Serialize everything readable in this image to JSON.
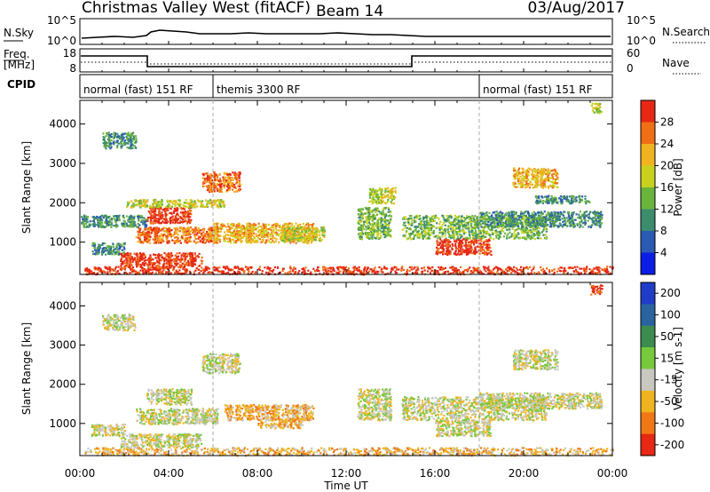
{
  "header": {
    "title": "Christmas Valley West (fitACF)",
    "beam": "Beam 14",
    "date": "03/Aug/2017"
  },
  "top_panels": {
    "nsky_label": "N.Sky",
    "nsky_ticks": [
      "10^5",
      "10^0"
    ],
    "nsearch_label": "N.Search",
    "nsearch_ticks": [
      "10^5",
      "10^0"
    ],
    "freq_label_1": "Freq.",
    "freq_label_2": "[MHz]",
    "freq_ticks": [
      "18",
      "8"
    ],
    "nave_label": "Nave",
    "nave_ticks": [
      "60",
      "0"
    ],
    "cpid_label": "CPID",
    "cpid_segments": [
      {
        "label": "normal (fast) 151 RF",
        "start_h": 0,
        "end_h": 6
      },
      {
        "label": "themis 3300 RF",
        "start_h": 6,
        "end_h": 18
      },
      {
        "label": "normal (fast) 151 RF",
        "start_h": 18,
        "end_h": 24
      }
    ]
  },
  "x_axis": {
    "label": "Time UT",
    "ticks": [
      "00:00",
      "04:00",
      "08:00",
      "12:00",
      "16:00",
      "20:00",
      "00:00"
    ]
  },
  "chart_data": [
    {
      "type": "heatmap",
      "name": "power",
      "ylabel": "Slant Range [km]",
      "yticks": [
        "1000",
        "2000",
        "3000",
        "4000"
      ],
      "xlim_hours": [
        0,
        24
      ],
      "ylim_km": [
        180,
        4600
      ],
      "colorbar_label": "Power [dB]",
      "colorbar_ticks": [
        "4",
        "8",
        "12",
        "16",
        "20",
        "24",
        "28"
      ],
      "colors": [
        "#0a1ee6",
        "#2a5ab4",
        "#3c8c6e",
        "#6ab43c",
        "#c8d21e",
        "#f0b41e",
        "#f06e14",
        "#e62814"
      ],
      "regions": [
        {
          "t0": 0.2,
          "t1": 24,
          "r0": 200,
          "r1": 400,
          "level": 7
        },
        {
          "t0": 0.5,
          "t1": 2.0,
          "r0": 700,
          "r1": 1000,
          "level": 2
        },
        {
          "t0": 1.0,
          "t1": 2.5,
          "r0": 3400,
          "r1": 3800,
          "level": 2
        },
        {
          "t0": 1.8,
          "t1": 5.5,
          "r0": 400,
          "r1": 750,
          "level": 7
        },
        {
          "t0": 2.5,
          "t1": 6.2,
          "r0": 1000,
          "r1": 1400,
          "level": 6
        },
        {
          "t0": 3.0,
          "t1": 5.0,
          "r0": 1500,
          "r1": 1900,
          "level": 7
        },
        {
          "t0": 2.0,
          "t1": 6.5,
          "r0": 1900,
          "r1": 2100,
          "level": 4
        },
        {
          "t0": 5.5,
          "t1": 7.2,
          "r0": 2300,
          "r1": 2800,
          "level": 6
        },
        {
          "t0": 6.0,
          "t1": 10.5,
          "r0": 1000,
          "r1": 1500,
          "level": 5
        },
        {
          "t0": 0.0,
          "t1": 3.0,
          "r0": 1400,
          "r1": 1700,
          "level": 2
        },
        {
          "t0": 9.0,
          "t1": 11.0,
          "r0": 1050,
          "r1": 1400,
          "level": 4
        },
        {
          "t0": 12.5,
          "t1": 14.0,
          "r0": 1100,
          "r1": 1900,
          "level": 3
        },
        {
          "t0": 13.0,
          "t1": 14.2,
          "r0": 2000,
          "r1": 2400,
          "level": 4
        },
        {
          "t0": 14.5,
          "t1": 21.0,
          "r0": 1100,
          "r1": 1700,
          "level": 3
        },
        {
          "t0": 16.0,
          "t1": 18.5,
          "r0": 700,
          "r1": 1100,
          "level": 7
        },
        {
          "t0": 18.0,
          "t1": 23.5,
          "r0": 1400,
          "r1": 1800,
          "level": 2
        },
        {
          "t0": 19.5,
          "t1": 21.5,
          "r0": 2400,
          "r1": 2900,
          "level": 5
        },
        {
          "t0": 20.5,
          "t1": 23.0,
          "r0": 2000,
          "r1": 2200,
          "level": 2
        },
        {
          "t0": 23.0,
          "t1": 23.5,
          "r0": 4300,
          "r1": 4550,
          "level": 4
        }
      ]
    },
    {
      "type": "heatmap",
      "name": "velocity",
      "ylabel": "Slant Range [km]",
      "yticks": [
        "1000",
        "2000",
        "3000",
        "4000"
      ],
      "xlim_hours": [
        0,
        24
      ],
      "ylim_km": [
        180,
        4600
      ],
      "colorbar_label": "Velocity [m s-1]",
      "colorbar_ticks": [
        "200",
        "100",
        "50",
        "15",
        "-15",
        "-50",
        "-100",
        "-200"
      ],
      "colors": [
        "#1e3cc8",
        "#2a64a0",
        "#3c8c50",
        "#78c83c",
        "#c8c8c0",
        "#f0b41e",
        "#f07814",
        "#e62814"
      ],
      "regions": [
        {
          "t0": 0.2,
          "t1": 24,
          "r0": 200,
          "r1": 400,
          "level": 5
        },
        {
          "t0": 0.5,
          "t1": 2.0,
          "r0": 700,
          "r1": 1000,
          "level": 4
        },
        {
          "t0": 1.0,
          "t1": 2.5,
          "r0": 3400,
          "r1": 3800,
          "level": 4
        },
        {
          "t0": 1.8,
          "t1": 5.5,
          "r0": 400,
          "r1": 750,
          "level": 4
        },
        {
          "t0": 2.5,
          "t1": 6.2,
          "r0": 1000,
          "r1": 1400,
          "level": 4
        },
        {
          "t0": 3.0,
          "t1": 5.0,
          "r0": 1500,
          "r1": 1900,
          "level": 4
        },
        {
          "t0": 5.5,
          "t1": 7.2,
          "r0": 2300,
          "r1": 2800,
          "level": 4
        },
        {
          "t0": 6.5,
          "t1": 10.5,
          "r0": 1100,
          "r1": 1500,
          "level": 5
        },
        {
          "t0": 8.0,
          "t1": 10.0,
          "r0": 900,
          "r1": 1150,
          "level": 5
        },
        {
          "t0": 12.5,
          "t1": 14.0,
          "r0": 1100,
          "r1": 1900,
          "level": 4
        },
        {
          "t0": 14.5,
          "t1": 21.0,
          "r0": 1100,
          "r1": 1700,
          "level": 4
        },
        {
          "t0": 16.0,
          "t1": 18.5,
          "r0": 700,
          "r1": 1100,
          "level": 4
        },
        {
          "t0": 18.0,
          "t1": 23.5,
          "r0": 1400,
          "r1": 1800,
          "level": 4
        },
        {
          "t0": 19.5,
          "t1": 21.5,
          "r0": 2400,
          "r1": 2900,
          "level": 4
        },
        {
          "t0": 23.0,
          "t1": 23.5,
          "r0": 4300,
          "r1": 4550,
          "level": 7
        }
      ]
    }
  ]
}
